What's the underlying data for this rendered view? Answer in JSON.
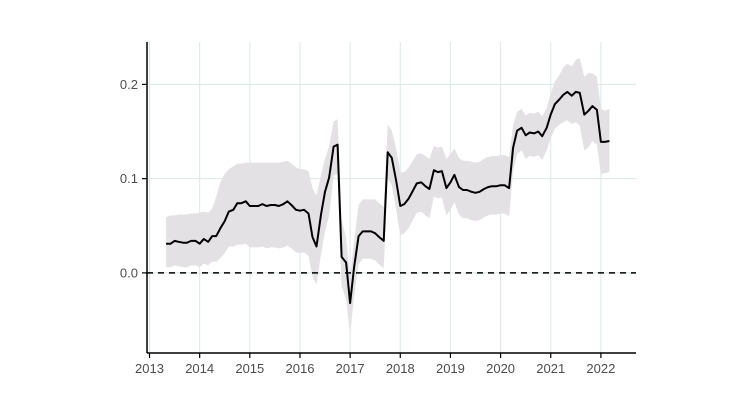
{
  "chart_data": {
    "type": "line",
    "title": "",
    "xlabel": "",
    "ylabel": "",
    "xlim": [
      2012.95,
      2022.7
    ],
    "ylim": [
      -0.085,
      0.245
    ],
    "x_ticks": [
      {
        "value": 2013,
        "label": "2013"
      },
      {
        "value": 2014,
        "label": "2014"
      },
      {
        "value": 2015,
        "label": "2015"
      },
      {
        "value": 2016,
        "label": "2016"
      },
      {
        "value": 2017,
        "label": "2017"
      },
      {
        "value": 2018,
        "label": "2018"
      },
      {
        "value": 2019,
        "label": "2019"
      },
      {
        "value": 2020,
        "label": "2020"
      },
      {
        "value": 2021,
        "label": "2021"
      },
      {
        "value": 2022,
        "label": "2022"
      }
    ],
    "y_ticks": [
      {
        "value": 0.0,
        "label": "0.0"
      },
      {
        "value": 0.1,
        "label": "0.1"
      },
      {
        "value": 0.2,
        "label": "0.2"
      }
    ],
    "grid": true,
    "reference_line": {
      "y": 0.0,
      "style": "dashed"
    },
    "colors": {
      "line": "#000000",
      "band": "#e3e1e3",
      "grid": "#dbe8e6",
      "axis": "#000000"
    },
    "series": [
      {
        "x": [
          2013.33,
          2013.42,
          2013.5,
          2013.58,
          2013.67,
          2013.75,
          2013.83,
          2013.92,
          2014.0,
          2014.08,
          2014.17,
          2014.25,
          2014.33,
          2014.42,
          2014.5,
          2014.58,
          2014.67,
          2014.75,
          2014.83,
          2014.92,
          2015.0,
          2015.08,
          2015.17,
          2015.25,
          2015.33,
          2015.42,
          2015.5,
          2015.58,
          2015.67,
          2015.75,
          2015.83,
          2015.92,
          2016.0,
          2016.08,
          2016.17,
          2016.25,
          2016.33,
          2016.42,
          2016.5,
          2016.58,
          2016.67,
          2016.75,
          2016.83,
          2016.92,
          2017.0,
          2017.08,
          2017.17,
          2017.25,
          2017.33,
          2017.42,
          2017.5,
          2017.58,
          2017.67,
          2017.75,
          2017.83,
          2017.92,
          2018.0,
          2018.08,
          2018.17,
          2018.25,
          2018.33,
          2018.42,
          2018.5,
          2018.58,
          2018.67,
          2018.75,
          2018.83,
          2018.92,
          2019.0,
          2019.08,
          2019.17,
          2019.25,
          2019.33,
          2019.42,
          2019.5,
          2019.58,
          2019.67,
          2019.75,
          2019.83,
          2019.92,
          2020.0,
          2020.08,
          2020.17,
          2020.25,
          2020.33,
          2020.42,
          2020.5,
          2020.58,
          2020.67,
          2020.75,
          2020.83,
          2020.92,
          2021.0,
          2021.08,
          2021.17,
          2021.25,
          2021.33,
          2021.42,
          2021.5,
          2021.58,
          2021.67,
          2021.75,
          2021.83,
          2021.92,
          2022.0,
          2022.08,
          2022.17
        ],
        "y": [
          0.031,
          0.031,
          0.034,
          0.033,
          0.032,
          0.032,
          0.034,
          0.034,
          0.031,
          0.036,
          0.033,
          0.039,
          0.039,
          0.048,
          0.055,
          0.065,
          0.067,
          0.074,
          0.074,
          0.076,
          0.071,
          0.071,
          0.071,
          0.073,
          0.071,
          0.072,
          0.072,
          0.071,
          0.073,
          0.076,
          0.072,
          0.067,
          0.066,
          0.067,
          0.063,
          0.038,
          0.028,
          0.062,
          0.086,
          0.101,
          0.134,
          0.136,
          0.017,
          0.011,
          -0.032,
          0.006,
          0.039,
          0.044,
          0.044,
          0.044,
          0.042,
          0.038,
          0.034,
          0.128,
          0.122,
          0.097,
          0.071,
          0.073,
          0.079,
          0.087,
          0.095,
          0.096,
          0.092,
          0.089,
          0.109,
          0.107,
          0.108,
          0.09,
          0.096,
          0.104,
          0.091,
          0.088,
          0.088,
          0.086,
          0.085,
          0.086,
          0.089,
          0.091,
          0.092,
          0.092,
          0.093,
          0.093,
          0.09,
          0.133,
          0.151,
          0.154,
          0.146,
          0.149,
          0.148,
          0.15,
          0.145,
          0.154,
          0.168,
          0.179,
          0.184,
          0.189,
          0.192,
          0.188,
          0.192,
          0.191,
          0.168,
          0.172,
          0.177,
          0.173,
          0.139,
          0.139,
          0.14
        ],
        "upper": [
          0.059,
          0.061,
          0.061,
          0.062,
          0.062,
          0.062,
          0.063,
          0.063,
          0.064,
          0.065,
          0.064,
          0.068,
          0.081,
          0.097,
          0.105,
          0.11,
          0.113,
          0.116,
          0.116,
          0.117,
          0.117,
          0.117,
          0.117,
          0.117,
          0.117,
          0.117,
          0.117,
          0.117,
          0.118,
          0.119,
          0.116,
          0.112,
          0.11,
          0.11,
          0.108,
          0.09,
          0.082,
          0.104,
          0.121,
          0.134,
          0.161,
          0.163,
          0.057,
          0.037,
          -0.004,
          0.034,
          0.072,
          0.078,
          0.078,
          0.078,
          0.078,
          0.074,
          0.07,
          0.157,
          0.151,
          0.131,
          0.107,
          0.107,
          0.112,
          0.119,
          0.126,
          0.127,
          0.124,
          0.121,
          0.135,
          0.133,
          0.134,
          0.121,
          0.126,
          0.132,
          0.122,
          0.119,
          0.119,
          0.118,
          0.117,
          0.118,
          0.121,
          0.123,
          0.124,
          0.124,
          0.125,
          0.125,
          0.123,
          0.157,
          0.171,
          0.174,
          0.167,
          0.17,
          0.169,
          0.171,
          0.166,
          0.175,
          0.19,
          0.203,
          0.21,
          0.218,
          0.222,
          0.219,
          0.226,
          0.228,
          0.208,
          0.212,
          0.212,
          0.208,
          0.174,
          0.172,
          0.174
        ],
        "lower": [
          0.006,
          0.006,
          0.008,
          0.007,
          0.006,
          0.006,
          0.008,
          0.008,
          0.006,
          0.01,
          0.008,
          0.012,
          0.012,
          0.016,
          0.021,
          0.028,
          0.028,
          0.03,
          0.03,
          0.031,
          0.027,
          0.027,
          0.027,
          0.028,
          0.026,
          0.027,
          0.027,
          0.026,
          0.027,
          0.029,
          0.026,
          0.022,
          0.021,
          0.022,
          0.018,
          -0.004,
          -0.012,
          0.02,
          0.044,
          0.061,
          0.103,
          0.105,
          -0.014,
          -0.028,
          -0.065,
          -0.025,
          0.009,
          0.015,
          0.015,
          0.015,
          0.013,
          0.009,
          0.005,
          0.1,
          0.093,
          0.066,
          0.04,
          0.042,
          0.048,
          0.056,
          0.064,
          0.065,
          0.061,
          0.058,
          0.081,
          0.079,
          0.08,
          0.061,
          0.067,
          0.075,
          0.062,
          0.058,
          0.058,
          0.056,
          0.055,
          0.056,
          0.059,
          0.061,
          0.062,
          0.062,
          0.063,
          0.063,
          0.06,
          0.107,
          0.126,
          0.13,
          0.121,
          0.124,
          0.123,
          0.125,
          0.12,
          0.13,
          0.143,
          0.153,
          0.157,
          0.16,
          0.162,
          0.158,
          0.16,
          0.156,
          0.13,
          0.133,
          0.14,
          0.136,
          0.105,
          0.106,
          0.107
        ]
      }
    ]
  }
}
